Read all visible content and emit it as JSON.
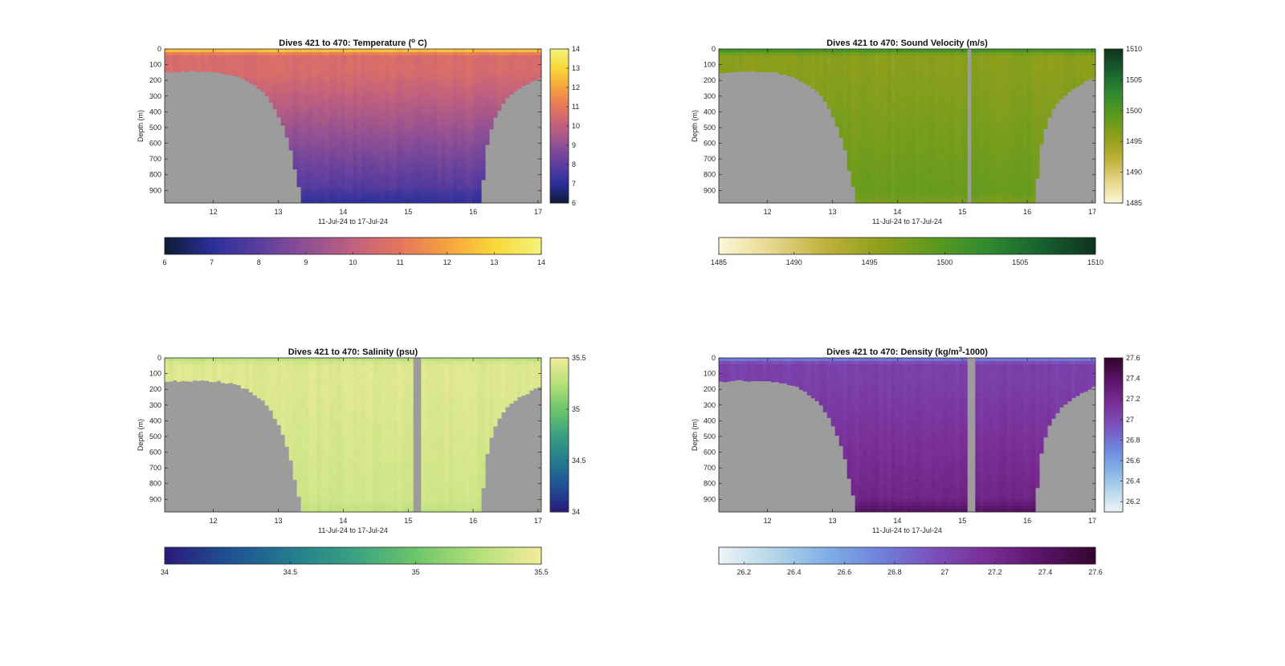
{
  "page": {
    "background": "#ffffff"
  },
  "chart_data": [
    {
      "type": "heatmap",
      "id": "temperature",
      "title": "Dives 421 to 470: Temperature (°C)",
      "title_main": "Dives 421 to 470: Temperature (",
      "title_sup": "o",
      "title_tail": " C)",
      "xlabel": "11-Jul-24 to 17-Jul-24",
      "ylabel": "Depth (m)",
      "xlim": [
        11.25,
        17.05
      ],
      "ylim": [
        0,
        980
      ],
      "x_ticks": [
        "12",
        "13",
        "14",
        "15",
        "16",
        "17"
      ],
      "x_tick_values": [
        12,
        13,
        14,
        15,
        16,
        17
      ],
      "y_ticks": [
        "0",
        "100",
        "200",
        "300",
        "400",
        "500",
        "600",
        "700",
        "800",
        "900"
      ],
      "y_tick_values": [
        0,
        100,
        200,
        300,
        400,
        500,
        600,
        700,
        800,
        900
      ],
      "colorbar": {
        "range": [
          6,
          14
        ],
        "side_ticks": [
          "6",
          "7",
          "8",
          "9",
          "10",
          "11",
          "12",
          "13",
          "14"
        ],
        "side_tick_values": [
          6,
          7,
          8,
          9,
          10,
          11,
          12,
          13,
          14
        ],
        "bottom_ticks": [
          "6",
          "7",
          "8",
          "9",
          "10",
          "11",
          "12",
          "13",
          "14"
        ],
        "bottom_tick_values": [
          6,
          7,
          8,
          9,
          10,
          11,
          12,
          13,
          14
        ],
        "colors": [
          "#0d1b33",
          "#2a2f9a",
          "#5b3d9e",
          "#8e4f95",
          "#c0607e",
          "#e6755e",
          "#f6a23d",
          "#f9d838",
          "#f4f27a"
        ]
      },
      "profile": {
        "surface_value": 13.2,
        "upper_value": 10.6,
        "deep_value": 7.6,
        "bottom_value": 7.1
      },
      "gap": null
    },
    {
      "type": "heatmap",
      "id": "sound-velocity",
      "title": "Dives 421 to 470: Sound Velocity (m/s)",
      "title_main": "Dives 421 to 470: Sound Velocity (m/s)",
      "title_sup": "",
      "title_tail": "",
      "xlabel": "11-Jul-24 to 17-Jul-24",
      "ylabel": "Depth (m)",
      "xlim": [
        11.25,
        17.05
      ],
      "ylim": [
        0,
        980
      ],
      "x_ticks": [
        "12",
        "13",
        "14",
        "15",
        "16",
        "17"
      ],
      "x_tick_values": [
        12,
        13,
        14,
        15,
        16,
        17
      ],
      "y_ticks": [
        "0",
        "100",
        "200",
        "300",
        "400",
        "500",
        "600",
        "700",
        "800",
        "900"
      ],
      "y_tick_values": [
        0,
        100,
        200,
        300,
        400,
        500,
        600,
        700,
        800,
        900
      ],
      "colorbar": {
        "range": [
          1485,
          1510
        ],
        "side_ticks": [
          "1485",
          "1490",
          "1495",
          "1500",
          "1505",
          "1510"
        ],
        "side_tick_values": [
          1485,
          1490,
          1495,
          1500,
          1505,
          1510
        ],
        "bottom_ticks": [
          "1485",
          "1490",
          "1495",
          "1500",
          "1505",
          "1510"
        ],
        "bottom_tick_values": [
          1485,
          1490,
          1495,
          1500,
          1505,
          1510
        ],
        "colors": [
          "#fdf8d8",
          "#e6d68c",
          "#bfb13a",
          "#8e9f1c",
          "#5c9a1e",
          "#2f8a30",
          "#17612f",
          "#10331e"
        ]
      },
      "profile": {
        "surface_value": 1502.5,
        "upper_value": 1496.0,
        "deep_value": 1498.5,
        "bottom_value": 1497.0
      },
      "gap": [
        15.05,
        15.16
      ]
    },
    {
      "type": "heatmap",
      "id": "salinity",
      "title": "Dives 421 to 470: Salinity (psu)",
      "title_main": "Dives 421 to 470: Salinity (psu)",
      "title_sup": "",
      "title_tail": "",
      "xlabel": "11-Jul-24 to 17-Jul-24",
      "ylabel": "Depth (m)",
      "xlim": [
        11.25,
        17.05
      ],
      "ylim": [
        0,
        980
      ],
      "x_ticks": [
        "12",
        "13",
        "14",
        "15",
        "16",
        "17"
      ],
      "x_tick_values": [
        12,
        13,
        14,
        15,
        16,
        17
      ],
      "y_ticks": [
        "0",
        "100",
        "200",
        "300",
        "400",
        "500",
        "600",
        "700",
        "800",
        "900"
      ],
      "y_tick_values": [
        0,
        100,
        200,
        300,
        400,
        500,
        600,
        700,
        800,
        900
      ],
      "colorbar": {
        "range": [
          34,
          35.5
        ],
        "side_ticks": [
          "34",
          "34.5",
          "35",
          "35.5"
        ],
        "side_tick_values": [
          34,
          34.5,
          35,
          35.5
        ],
        "bottom_ticks": [
          "34",
          "34.5",
          "35",
          "35.5"
        ],
        "bottom_tick_values": [
          34,
          34.5,
          35,
          35.5
        ],
        "colors": [
          "#2a1a78",
          "#1f4f94",
          "#237b8e",
          "#39a181",
          "#6dc56a",
          "#b4e07a",
          "#f2ec98"
        ]
      },
      "profile": {
        "surface_value": 35.25,
        "upper_value": 35.42,
        "deep_value": 35.36,
        "bottom_value": 35.3
      },
      "gap": [
        15.08,
        15.2
      ]
    },
    {
      "type": "heatmap",
      "id": "density",
      "title": "Dives 421 to 470: Density (kg/m³-1000)",
      "title_main": "Dives 421 to 470: Density (kg/m",
      "title_sup": "3",
      "title_tail": "-1000)",
      "xlabel": "11-Jul-24 to 17-Jul-24",
      "ylabel": "Depth (m)",
      "xlim": [
        11.25,
        17.05
      ],
      "ylim": [
        0,
        980
      ],
      "x_ticks": [
        "12",
        "13",
        "14",
        "15",
        "16",
        "17"
      ],
      "x_tick_values": [
        12,
        13,
        14,
        15,
        16,
        17
      ],
      "y_ticks": [
        "0",
        "100",
        "200",
        "300",
        "400",
        "500",
        "600",
        "700",
        "800",
        "900"
      ],
      "y_tick_values": [
        0,
        100,
        200,
        300,
        400,
        500,
        600,
        700,
        800,
        900
      ],
      "colorbar": {
        "range": [
          26.1,
          27.6
        ],
        "side_ticks": [
          "26.2",
          "26.4",
          "26.6",
          "26.8",
          "27",
          "27.2",
          "27.4",
          "27.6"
        ],
        "side_tick_values": [
          26.2,
          26.4,
          26.6,
          26.8,
          27,
          27.2,
          27.4,
          27.6
        ],
        "bottom_ticks": [
          "26.2",
          "26.4",
          "26.6",
          "26.8",
          "27",
          "27.2",
          "27.4",
          "27.6"
        ],
        "bottom_tick_values": [
          26.2,
          26.4,
          26.6,
          26.8,
          27,
          27.2,
          27.4,
          27.6
        ],
        "colors": [
          "#eef5f6",
          "#b5d6e9",
          "#7fb0e6",
          "#6f81dc",
          "#7b4fba",
          "#7a2d95",
          "#5a1468",
          "#33052f"
        ]
      },
      "profile": {
        "surface_value": 26.7,
        "upper_value": 27.05,
        "deep_value": 27.25,
        "bottom_value": 27.42
      },
      "gap": [
        15.08,
        15.2
      ]
    }
  ]
}
